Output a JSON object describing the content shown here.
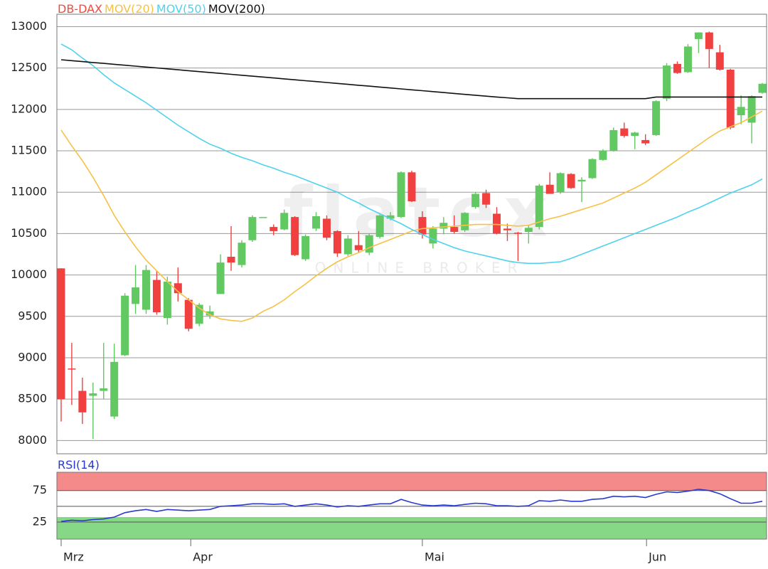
{
  "chart_data": [
    {
      "type": "candlestick",
      "name": "DB-DAX",
      "color": "#f04a3c",
      "up_color": "#62c862",
      "down_color": "#f04040",
      "watermark": "flatex",
      "watermark_sub": "ONLINE BROKER",
      "open": [
        10080,
        8870,
        8600,
        8540,
        8600,
        8290,
        9030,
        9650,
        9580,
        9940,
        9480,
        9900,
        9700,
        9410,
        9510,
        9770,
        10220,
        10120,
        10420,
        10700,
        10580,
        10550,
        10700,
        10190,
        10560,
        10680,
        10530,
        10250,
        10360,
        10270,
        10460,
        10680,
        10700,
        11240,
        10700,
        10380,
        10560,
        10580,
        10540,
        10820,
        10990,
        10740,
        10560,
        10510,
        10520,
        10580,
        11090,
        11000,
        11220,
        11130,
        11170,
        11390,
        11500,
        11770,
        11680,
        11630,
        11690,
        12130,
        12550,
        12450,
        12850,
        12930,
        12690,
        12480,
        11930,
        11840,
        12200
      ],
      "high": [
        10080,
        9180,
        8760,
        8700,
        9180,
        9170,
        9780,
        10120,
        10120,
        10050,
        9980,
        10090,
        9720,
        9660,
        9630,
        10250,
        10590,
        10420,
        10720,
        10700,
        10610,
        10790,
        10710,
        10490,
        10760,
        10720,
        10540,
        10480,
        10530,
        10500,
        10730,
        10760,
        11250,
        11260,
        10770,
        10590,
        10700,
        10720,
        10760,
        11000,
        11030,
        10820,
        10620,
        10520,
        10600,
        11100,
        11240,
        11240,
        11230,
        11180,
        11410,
        11520,
        11780,
        11840,
        11730,
        11700,
        12110,
        12560,
        12580,
        12790,
        12930,
        12940,
        12780,
        12490,
        12170,
        12170,
        12320
      ],
      "low": [
        8230,
        8430,
        8200,
        8020,
        8500,
        8260,
        9020,
        9530,
        9530,
        9520,
        9400,
        9680,
        9320,
        9380,
        9470,
        9770,
        10050,
        10090,
        10400,
        10700,
        10480,
        10540,
        10230,
        10170,
        10530,
        10420,
        10220,
        10230,
        10270,
        10240,
        10440,
        10660,
        10690,
        10880,
        10440,
        10320,
        10490,
        10500,
        10520,
        10800,
        10810,
        10490,
        10410,
        10170,
        10380,
        10550,
        10980,
        10980,
        11040,
        10880,
        11160,
        11380,
        11490,
        11660,
        11520,
        11570,
        11680,
        12100,
        12430,
        12440,
        12680,
        12500,
        12470,
        11760,
        11820,
        11590,
        12190
      ],
      "close": [
        8500,
        8860,
        8340,
        8570,
        8630,
        8950,
        9750,
        9850,
        10060,
        9550,
        9920,
        9780,
        9350,
        9640,
        9560,
        10150,
        10150,
        10390,
        10700,
        10700,
        10530,
        10750,
        10240,
        10470,
        10710,
        10450,
        10260,
        10440,
        10300,
        10480,
        10720,
        10720,
        11240,
        10890,
        10490,
        10560,
        10630,
        10520,
        10750,
        10980,
        10850,
        10500,
        10540,
        10500,
        10570,
        11080,
        10980,
        11230,
        11050,
        11150,
        11400,
        11500,
        11750,
        11680,
        11720,
        11590,
        12100,
        12530,
        12440,
        12760,
        12930,
        12730,
        12480,
        11780,
        12030,
        12160,
        12310
      ],
      "series": [
        {
          "name": "MOV(20)",
          "color": "#f5c246",
          "values": [
            11750,
            11560,
            11380,
            11180,
            10960,
            10720,
            10520,
            10340,
            10180,
            10050,
            9920,
            9800,
            9700,
            9600,
            9520,
            9470,
            9450,
            9440,
            9480,
            9560,
            9620,
            9700,
            9800,
            9890,
            9990,
            10080,
            10160,
            10220,
            10270,
            10330,
            10380,
            10430,
            10480,
            10530,
            10560,
            10570,
            10580,
            10590,
            10600,
            10610,
            10610,
            10610,
            10600,
            10590,
            10600,
            10640,
            10680,
            10710,
            10750,
            10790,
            10830,
            10870,
            10930,
            10990,
            11050,
            11120,
            11210,
            11300,
            11390,
            11480,
            11570,
            11660,
            11740,
            11790,
            11840,
            11910,
            11980
          ]
        },
        {
          "name": "MOV(50)",
          "color": "#4fd2ee",
          "values": [
            12790,
            12720,
            12620,
            12530,
            12420,
            12320,
            12240,
            12160,
            12080,
            11990,
            11900,
            11810,
            11730,
            11650,
            11580,
            11530,
            11470,
            11420,
            11380,
            11330,
            11290,
            11240,
            11200,
            11150,
            11100,
            11050,
            11000,
            10930,
            10870,
            10800,
            10740,
            10680,
            10620,
            10550,
            10490,
            10430,
            10380,
            10330,
            10290,
            10260,
            10230,
            10200,
            10170,
            10150,
            10140,
            10140,
            10150,
            10160,
            10200,
            10250,
            10300,
            10350,
            10400,
            10450,
            10500,
            10550,
            10600,
            10650,
            10700,
            10760,
            10810,
            10870,
            10930,
            10990,
            11040,
            11090,
            11160
          ]
        },
        {
          "name": "MOV(200)",
          "color": "#111111",
          "values": [
            12600,
            12589,
            12578,
            12567,
            12556,
            12545,
            12534,
            12523,
            12512,
            12501,
            12490,
            12479,
            12468,
            12457,
            12446,
            12435,
            12424,
            12413,
            12402,
            12391,
            12380,
            12369,
            12358,
            12347,
            12336,
            12325,
            12314,
            12303,
            12292,
            12281,
            12270,
            12259,
            12248,
            12237,
            12226,
            12215,
            12204,
            12193,
            12182,
            12171,
            12160,
            12150,
            12140,
            12130,
            12130,
            12130,
            12130,
            12130,
            12130,
            12130,
            12130,
            12130,
            12130,
            12130,
            12130,
            12130,
            12150,
            12150,
            12150,
            12150,
            12150,
            12150,
            12150,
            12150,
            12150,
            12150,
            12150
          ]
        }
      ],
      "xlim": [
        -0.4,
        66.4
      ],
      "ylim": [
        7840,
        13150
      ],
      "yticks": [
        8000,
        8500,
        9000,
        9500,
        10000,
        10500,
        11000,
        11500,
        12000,
        12500,
        13000
      ],
      "grid": true
    },
    {
      "type": "line",
      "series": [
        {
          "name": "RSI(14)",
          "color": "#2a3ad0",
          "values": [
            26,
            28,
            27,
            29,
            30,
            33,
            40,
            43,
            45,
            42,
            45,
            44,
            43,
            44,
            45,
            50,
            51,
            52,
            54,
            54,
            53,
            54,
            50,
            52,
            54,
            52,
            49,
            51,
            50,
            52,
            54,
            54,
            61,
            56,
            52,
            51,
            52,
            51,
            53,
            55,
            54,
            51,
            51,
            50,
            51,
            59,
            58,
            60,
            58,
            58,
            61,
            62,
            66,
            65,
            66,
            64,
            69,
            73,
            72,
            74,
            77,
            75,
            70,
            62,
            55,
            55,
            58
          ]
        }
      ],
      "zones": [
        {
          "from": 75,
          "to": 104,
          "color": "#f58a8a"
        },
        {
          "from": -2,
          "to": 33,
          "color": "#86d886"
        }
      ],
      "xlim": [
        -0.4,
        66.4
      ],
      "ylim": [
        -2,
        104
      ],
      "yticks": [
        25,
        75
      ],
      "extra_gridlines": [
        50
      ],
      "grid": true,
      "xticks": [
        {
          "value": 0,
          "label": "Mrz"
        },
        {
          "value": 12.2,
          "label": "Apr"
        },
        {
          "value": 34,
          "label": "Mai"
        },
        {
          "value": 55.1,
          "label": "Jun"
        }
      ]
    }
  ]
}
